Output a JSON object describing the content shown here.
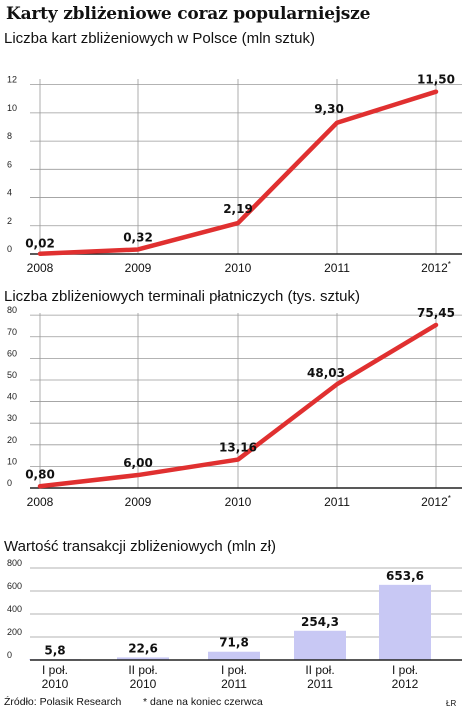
{
  "title": "Karty zbliżeniowe coraz popularniejsze",
  "colors": {
    "line": "#e03030",
    "bar": "#c8c8f4",
    "grid": "#9a9a9a",
    "axis": "#222222"
  },
  "chart_data": [
    {
      "type": "line",
      "title": "Liczba kart zbliżeniowych w Polsce (mln sztuk)",
      "categories": [
        "2008",
        "2009",
        "2010",
        "2011",
        "2012*"
      ],
      "values": [
        0.02,
        0.32,
        2.19,
        9.3,
        11.5
      ],
      "value_labels": [
        "0,02",
        "0,32",
        "2,19",
        "9,30",
        "11,50"
      ],
      "yticks": [
        0,
        2,
        4,
        6,
        8,
        10,
        12
      ],
      "ylim": [
        0,
        12.4
      ],
      "grid": true
    },
    {
      "type": "line",
      "title": "Liczba zbliżeniowych terminali płatniczych (tys. sztuk)",
      "categories": [
        "2008",
        "2009",
        "2010",
        "2011",
        "2012*"
      ],
      "values": [
        0.8,
        6.0,
        13.16,
        48.03,
        75.45
      ],
      "value_labels": [
        "0,80",
        "6,00",
        "13,16",
        "48,03",
        "75,45"
      ],
      "yticks": [
        0,
        10,
        20,
        30,
        40,
        50,
        60,
        70,
        80
      ],
      "ylim": [
        0,
        81
      ],
      "grid": true
    },
    {
      "type": "bar",
      "title": "Wartość transakcji zbliżeniowych (mln zł)",
      "categories": [
        [
          "I poł.",
          "2010"
        ],
        [
          "II poł.",
          "2010"
        ],
        [
          "I poł.",
          "2011"
        ],
        [
          "II poł.",
          "2011"
        ],
        [
          "I poł.",
          "2012"
        ]
      ],
      "values": [
        5.8,
        22.6,
        71.8,
        254.3,
        653.6
      ],
      "value_labels": [
        "5,8",
        "22,6",
        "71,8",
        "254,3",
        "653,6"
      ],
      "yticks": [
        0,
        200,
        400,
        600,
        800
      ],
      "ylim": [
        0,
        800
      ],
      "grid": true
    }
  ],
  "footer": {
    "source": "Źródło: Polasik Research",
    "note": "* dane na koniec czerwca",
    "credit": "ŁR"
  }
}
